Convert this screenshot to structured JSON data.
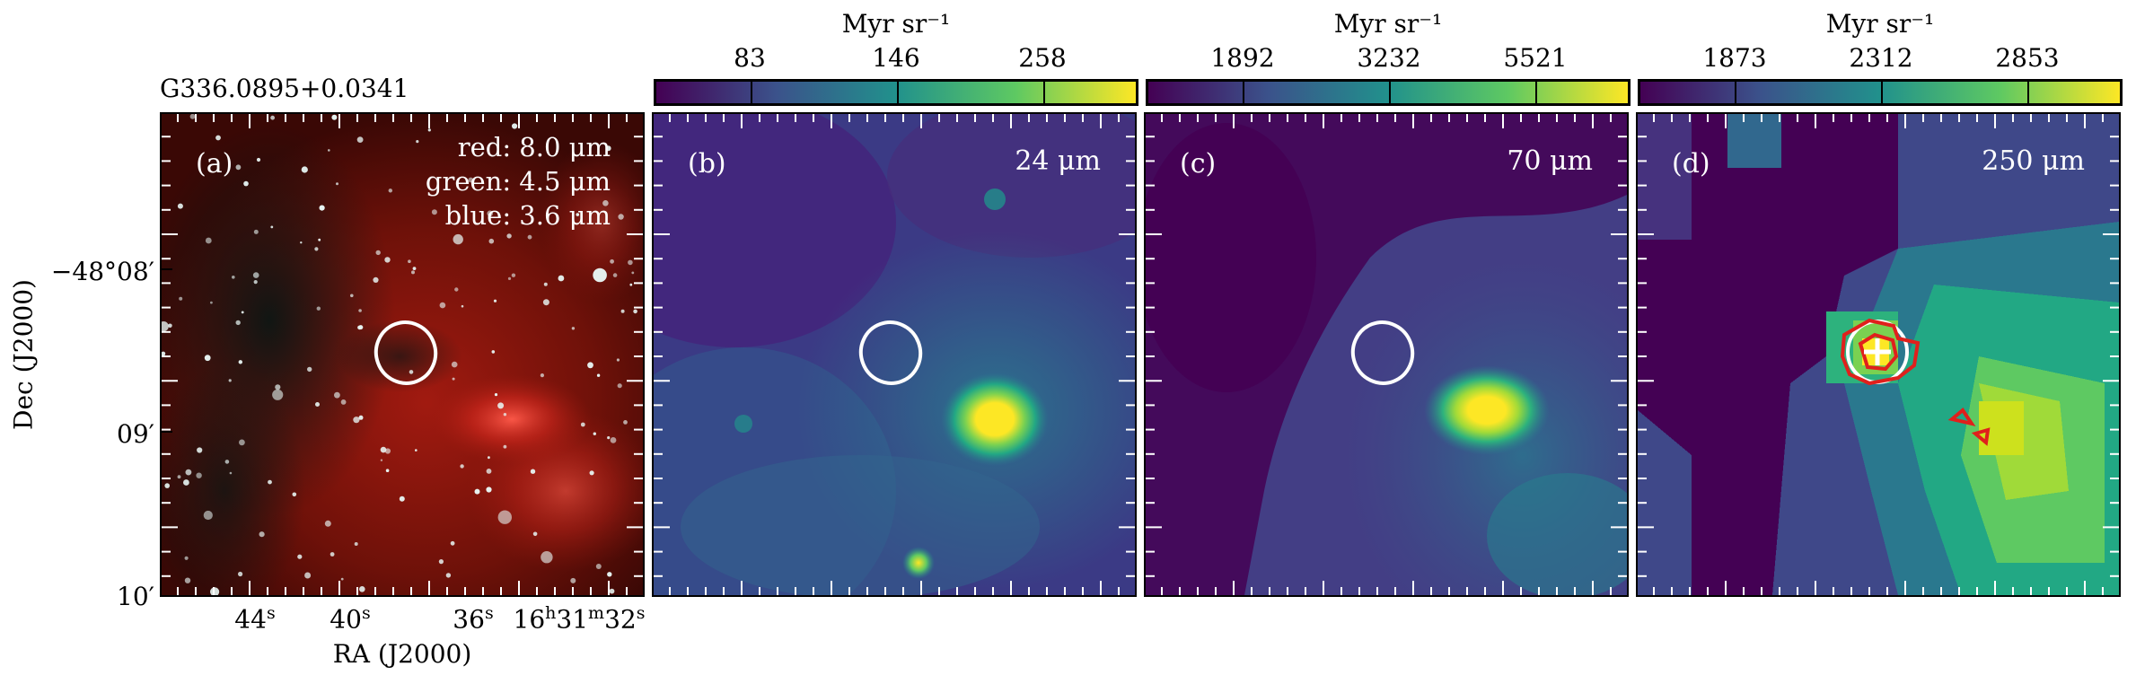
{
  "source_name": "G336.0895+0.0341",
  "panels": [
    {
      "label": "(a)",
      "bands": [
        "red: 8.0 μm",
        "green: 4.5 μm",
        "blue: 3.6 μm"
      ]
    },
    {
      "label": "(b)",
      "wavelength": "24 μm"
    },
    {
      "label": "(c)",
      "wavelength": "70 μm"
    },
    {
      "label": "(d)",
      "wavelength": "250 μm"
    }
  ],
  "colorbars": [
    {
      "unit": "Myr sr⁻¹",
      "ticks": [
        "83",
        "146",
        "258"
      ]
    },
    {
      "unit": "Myr sr⁻¹",
      "ticks": [
        "1892",
        "3232",
        "5521"
      ]
    },
    {
      "unit": "Myr sr⁻¹",
      "ticks": [
        "1873",
        "2312",
        "2853"
      ]
    }
  ],
  "axes": {
    "ylabel": "Dec (J2000)",
    "xlabel": "RA (J2000)",
    "yticks": [
      "−48°08′",
      "09′",
      "10′"
    ],
    "xticks": [
      {
        "main": "44",
        "sup": "s"
      },
      {
        "main": "40",
        "sup": "s"
      },
      {
        "main": "36",
        "sup": "s"
      },
      {
        "main": "16",
        "sup": "h",
        "main2": "31",
        "sup2": "m",
        "main3": "32",
        "sup3": "s"
      }
    ]
  },
  "colors": {
    "contour": "#e0201c",
    "aperture": "#ffffff",
    "viridis_low": "#440154",
    "viridis_high": "#fde725"
  }
}
